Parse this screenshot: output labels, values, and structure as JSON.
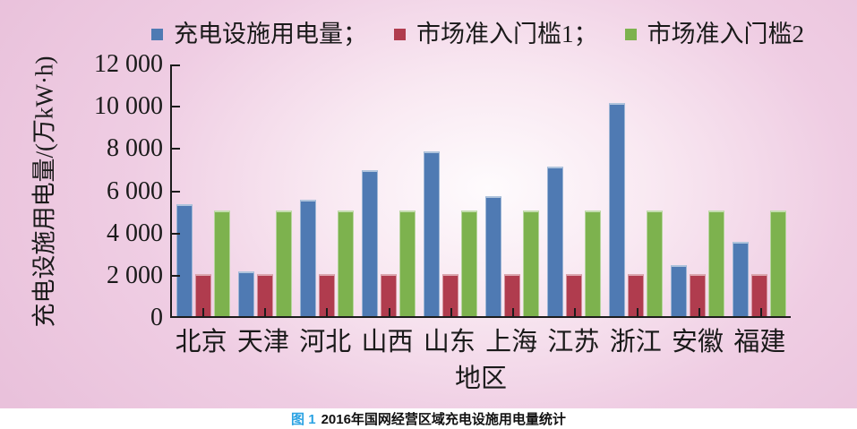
{
  "chart_data": {
    "type": "bar",
    "title": "",
    "categories": [
      "北京",
      "天津",
      "河北",
      "山西",
      "山东",
      "上海",
      "江苏",
      "浙江",
      "安徽",
      "福建"
    ],
    "series": [
      {
        "key": "usage",
        "name": "充电设施用电量",
        "legend_label": "充电设施用电量；",
        "color": "#4f7ab3",
        "values": [
          5300,
          2100,
          5500,
          6900,
          7800,
          5700,
          7100,
          10100,
          2400,
          3500
        ]
      },
      {
        "key": "threshold1",
        "name": "市场准入门槛1",
        "legend_label": "市场准入门槛1；",
        "color": "#b03c4e",
        "values": [
          2000,
          2000,
          2000,
          2000,
          2000,
          2000,
          2000,
          2000,
          2000,
          2000
        ]
      },
      {
        "key": "threshold2",
        "name": "市场准入门槛2",
        "legend_label": "市场准入门槛2",
        "color": "#7db24e",
        "values": [
          5000,
          5000,
          5000,
          5000,
          5000,
          5000,
          5000,
          5000,
          5000,
          5000
        ]
      }
    ],
    "xlabel": "地区",
    "ylabel": "充电设施用电量/(万kW·h)",
    "ylim": [
      0,
      12000
    ],
    "yticks": [
      {
        "value": 0,
        "label": "0"
      },
      {
        "value": 2000,
        "label": "2 000"
      },
      {
        "value": 4000,
        "label": "4 000"
      },
      {
        "value": 6000,
        "label": "6 000"
      },
      {
        "value": 8000,
        "label": "8 000"
      },
      {
        "value": 10000,
        "label": "10 000"
      },
      {
        "value": 12000,
        "label": "12 000"
      }
    ],
    "grid": false,
    "legend_position": "top"
  },
  "caption": {
    "prefix": "图 1",
    "prefix_color": "#2ba3e3",
    "text": "2016年国网经营区域充电设施用电量统计"
  },
  "colors": {
    "axis": "#1c1c1c",
    "background_center": "#fefbfd",
    "background_edge": "#e9c1db",
    "caption_background": "#ffffff"
  }
}
